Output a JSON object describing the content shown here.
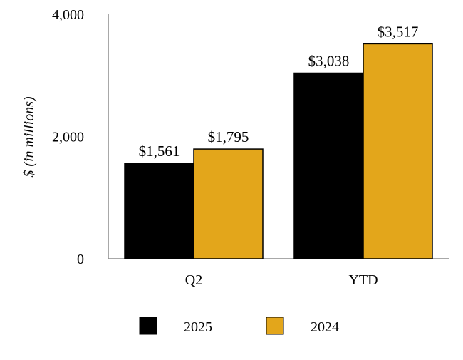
{
  "chart_data": {
    "type": "bar",
    "title": "",
    "xlabel": "",
    "ylabel": "$ (in millions)",
    "categories": [
      "Q2",
      "YTD"
    ],
    "series": [
      {
        "name": "2025",
        "color": "#000000",
        "values": [
          1561,
          3038
        ],
        "labels": [
          "$1,561",
          "$3,038"
        ]
      },
      {
        "name": "2024",
        "color": "#E3A61B",
        "values": [
          1795,
          3517
        ],
        "labels": [
          "$1,795",
          "$3,517"
        ]
      }
    ],
    "ylim": [
      0,
      4000
    ],
    "yticks": [
      0,
      2000,
      4000
    ],
    "ytick_labels": [
      "0",
      "2,000",
      "4,000"
    ],
    "grid": false,
    "legend_position": "bottom"
  }
}
